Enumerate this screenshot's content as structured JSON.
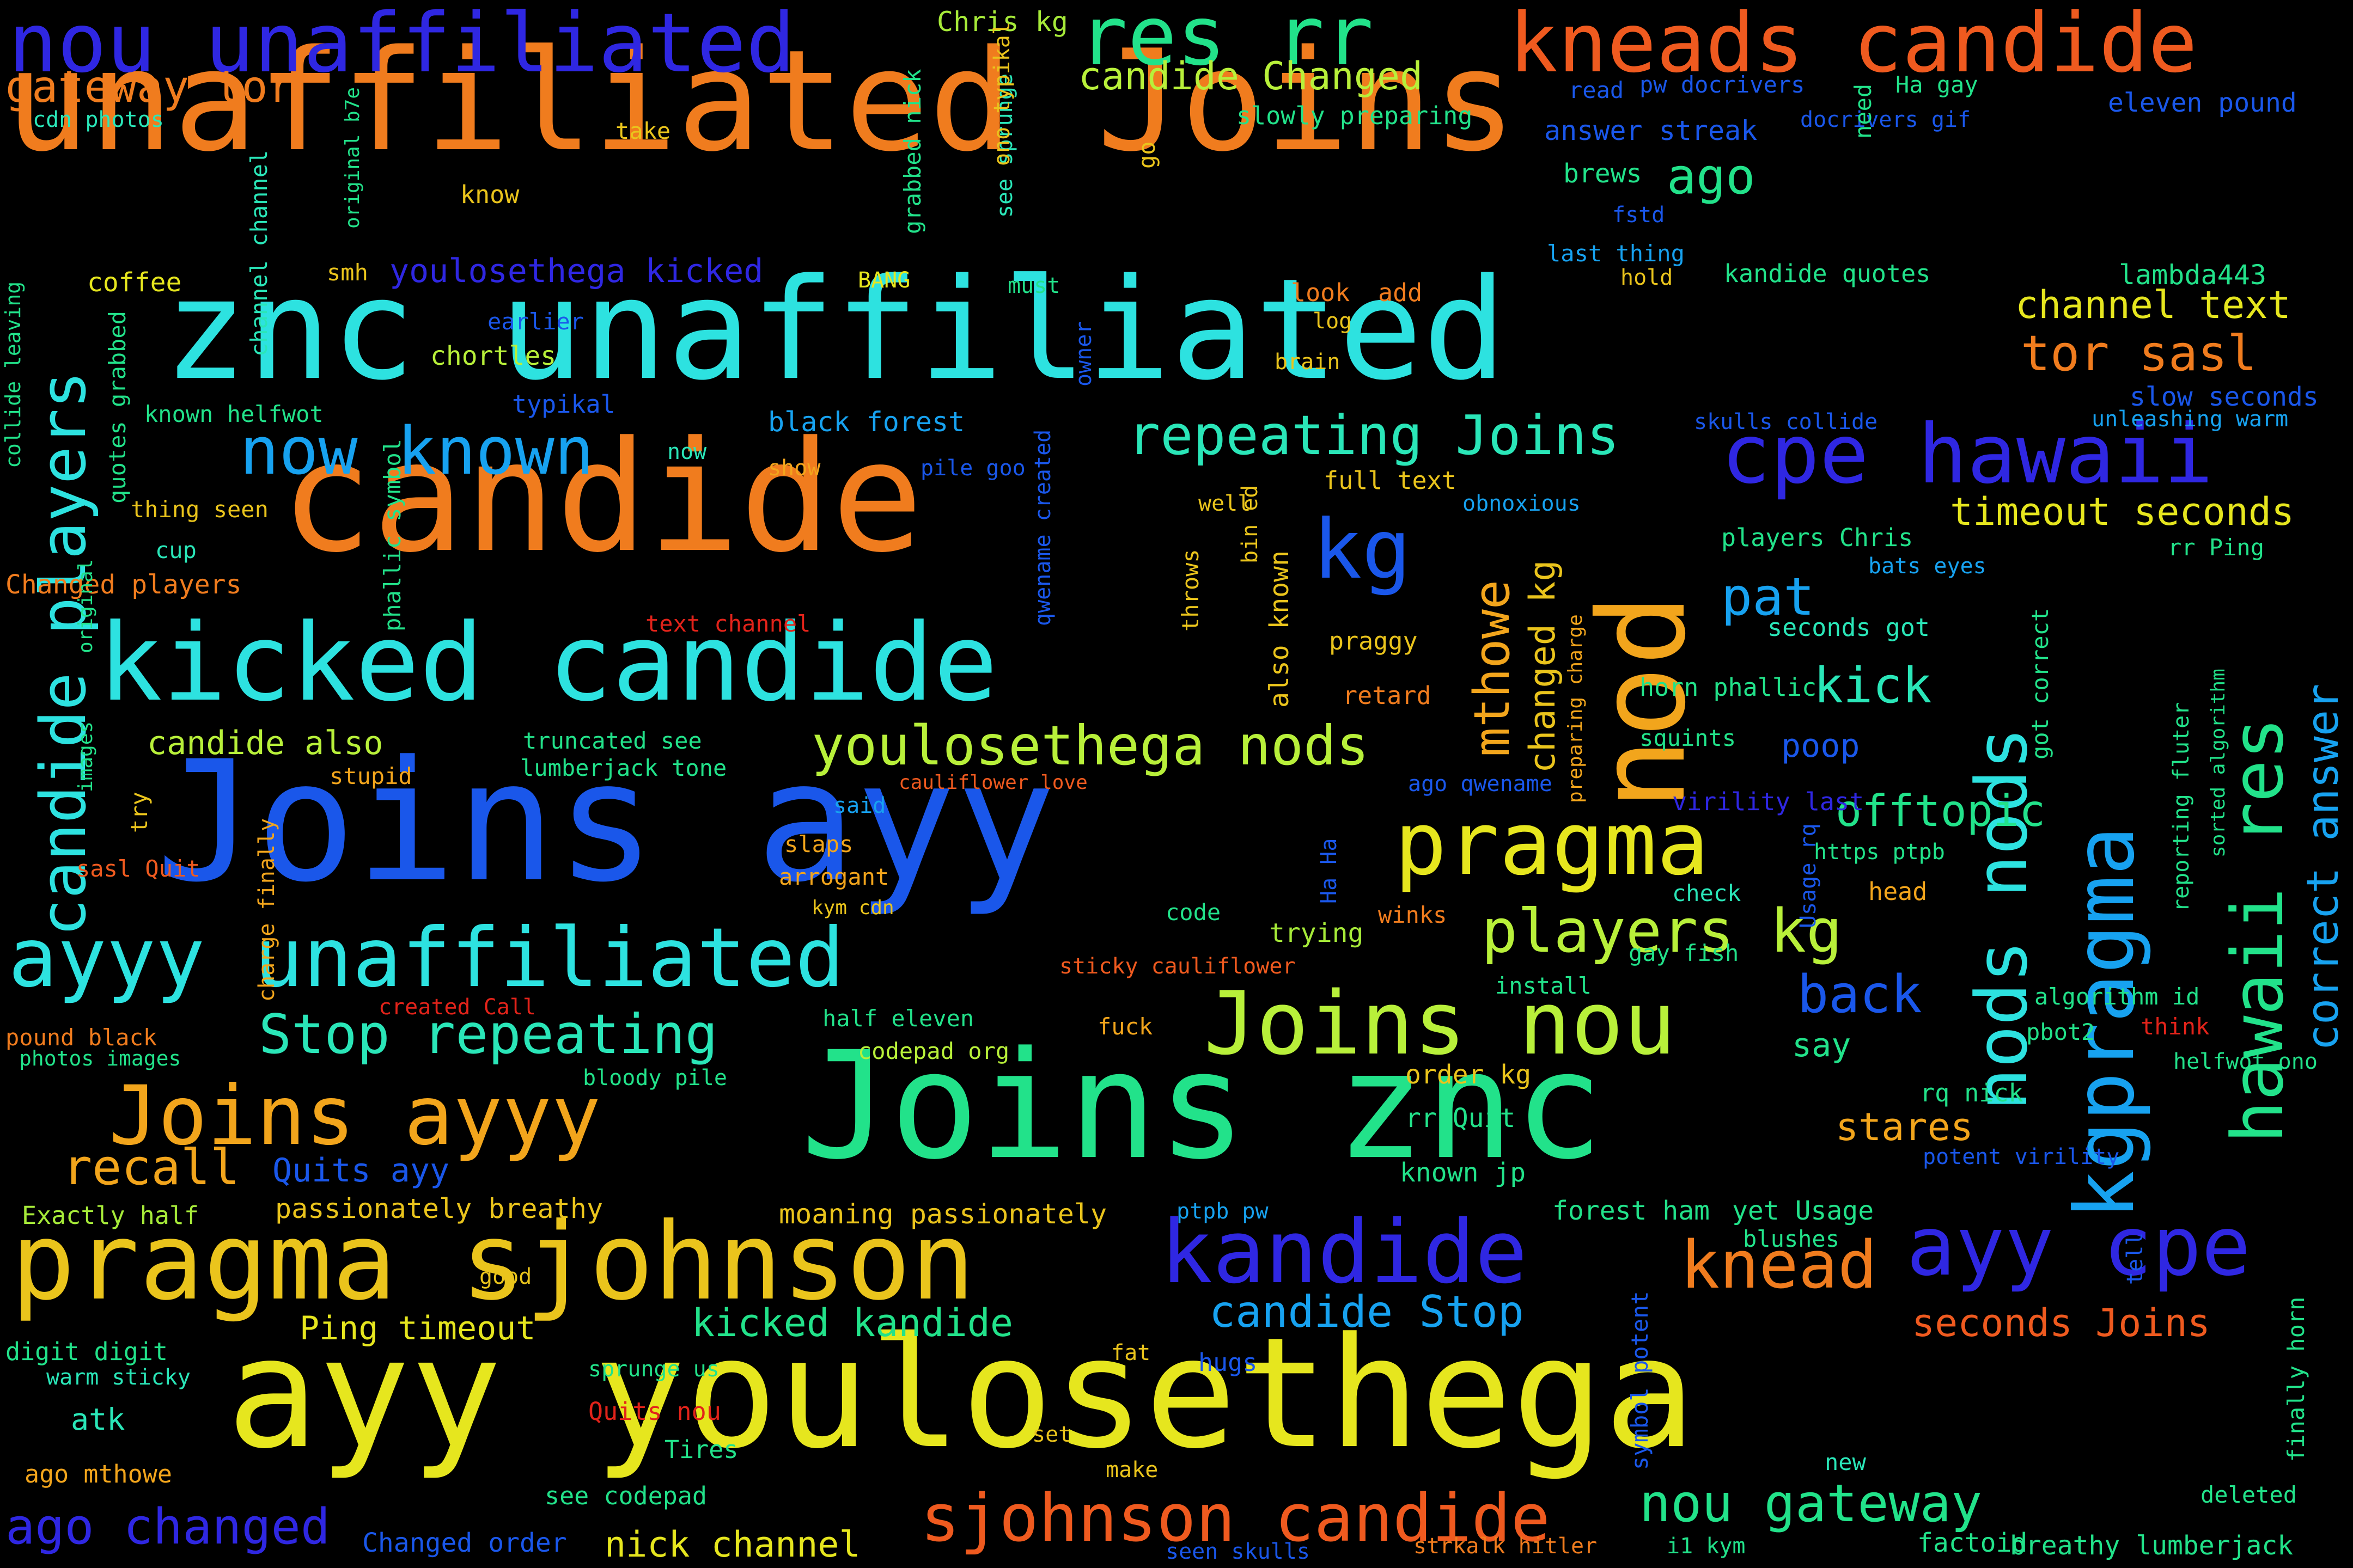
{
  "colors": {
    "background": "#000000",
    "red": "#e2231a",
    "orange_red": "#ef5a1f",
    "orange": "#f07c1e",
    "amber": "#f2a51c",
    "gold": "#eac41c",
    "yellow": "#e6e61e",
    "lime": "#b8f03a",
    "green_yellow": "#a6ea39",
    "green": "#22e28a",
    "mint": "#2ae6b8",
    "cyan": "#2de2e0",
    "sky": "#17a2f0",
    "blue": "#1a57ea",
    "indigo": "#2f27e2"
  },
  "words": [
    {
      "text": "unaffiliated Joins",
      "c": "orange"
    },
    {
      "text": "znc unaffiliated",
      "c": "cyan"
    },
    {
      "text": "candide",
      "c": "orange"
    },
    {
      "text": "nod",
      "c": "amber"
    },
    {
      "text": "Joins ayy",
      "c": "blue"
    },
    {
      "text": "Joins znc",
      "c": "green"
    },
    {
      "text": "ayy youlosethega",
      "c": "yellow"
    },
    {
      "text": "kicked candide",
      "c": "cyan"
    },
    {
      "text": "pragma sjohnson",
      "c": "gold"
    },
    {
      "text": "nou unaffiliated",
      "c": "indigo"
    },
    {
      "text": "res rr",
      "c": "green"
    },
    {
      "text": "kneads candide",
      "c": "orange_red"
    },
    {
      "text": "cpe hawaii",
      "c": "indigo"
    },
    {
      "text": "ayyy unaffiliated",
      "c": "cyan"
    },
    {
      "text": "pragma",
      "c": "yellow"
    },
    {
      "text": "Joins nou",
      "c": "lime"
    },
    {
      "text": "kandide",
      "c": "indigo"
    },
    {
      "text": "Joins ayyy",
      "c": "amber"
    },
    {
      "text": "sjohnson candide",
      "c": "orange_red"
    },
    {
      "text": "ayy cpe",
      "c": "indigo"
    },
    {
      "text": "kg",
      "c": "blue"
    },
    {
      "text": "now known",
      "c": "sky"
    },
    {
      "text": "repeating Joins",
      "c": "mint"
    },
    {
      "text": "youlosethega nods",
      "c": "lime"
    },
    {
      "text": "players kg",
      "c": "lime"
    },
    {
      "text": "Stop repeating",
      "c": "mint"
    },
    {
      "text": "knead",
      "c": "orange"
    },
    {
      "text": "nods nods",
      "c": "cyan"
    },
    {
      "text": "kgpragma",
      "c": "sky"
    },
    {
      "text": "hawaii res",
      "c": "green"
    },
    {
      "text": "correct answer",
      "c": "sky"
    },
    {
      "text": "timeout seconds",
      "c": "yellow"
    },
    {
      "text": "candide players",
      "c": "cyan"
    },
    {
      "text": "mthowe",
      "c": "amber"
    },
    {
      "text": "changed kg",
      "c": "gold"
    },
    {
      "text": "recall",
      "c": "amber"
    },
    {
      "text": "tor sasl",
      "c": "orange"
    },
    {
      "text": "channel text",
      "c": "yellow"
    },
    {
      "text": "offtopic",
      "c": "green"
    },
    {
      "text": "kick",
      "c": "mint"
    },
    {
      "text": "pat",
      "c": "sky"
    },
    {
      "text": "back",
      "c": "blue"
    },
    {
      "text": "ago",
      "c": "green"
    },
    {
      "text": "stares",
      "c": "amber"
    },
    {
      "text": "candide Stop",
      "c": "sky"
    },
    {
      "text": "kicked kandide",
      "c": "green"
    },
    {
      "text": "nou gateway",
      "c": "green"
    },
    {
      "text": "seconds Joins",
      "c": "orange_red"
    },
    {
      "text": "ago changed",
      "c": "indigo"
    },
    {
      "text": "nick channel",
      "c": "yellow"
    },
    {
      "text": "gateway tor",
      "c": "orange"
    },
    {
      "text": "candide Changed",
      "c": "lime"
    },
    {
      "text": "youlosethega kicked",
      "c": "indigo"
    },
    {
      "text": "Quits ayy",
      "c": "blue"
    },
    {
      "text": "Ping timeout",
      "c": "yellow"
    },
    {
      "text": "moaning passionately",
      "c": "gold"
    },
    {
      "text": "passionately breathy",
      "c": "gold"
    },
    {
      "text": "answer streak",
      "c": "blue"
    },
    {
      "text": "eleven pound",
      "c": "blue"
    },
    {
      "text": "Chris kg",
      "c": "green_yellow"
    },
    {
      "text": "cdn photos",
      "c": "mint"
    },
    {
      "text": "take",
      "c": "gold"
    },
    {
      "text": "know",
      "c": "gold"
    },
    {
      "text": "smh",
      "c": "gold"
    },
    {
      "text": "coffee",
      "c": "yellow"
    },
    {
      "text": "BANG",
      "c": "yellow"
    },
    {
      "text": "must",
      "c": "green"
    },
    {
      "text": "earlier",
      "c": "blue"
    },
    {
      "text": "chortles",
      "c": "lime"
    },
    {
      "text": "known helfwot",
      "c": "green"
    },
    {
      "text": "typikal",
      "c": "blue"
    },
    {
      "text": "black forest",
      "c": "sky"
    },
    {
      "text": "now",
      "c": "mint"
    },
    {
      "text": "show",
      "c": "amber"
    },
    {
      "text": "pile goo",
      "c": "blue"
    },
    {
      "text": "thing seen",
      "c": "gold"
    },
    {
      "text": "cup",
      "c": "mint"
    },
    {
      "text": "Changed players",
      "c": "orange"
    },
    {
      "text": "text channel",
      "c": "red"
    },
    {
      "text": "candide also",
      "c": "lime"
    },
    {
      "text": "truncated see",
      "c": "green"
    },
    {
      "text": "lumberjack tone",
      "c": "green"
    },
    {
      "text": "stupid",
      "c": "amber"
    },
    {
      "text": "said",
      "c": "sky"
    },
    {
      "text": "cauliflower love",
      "c": "orange_red"
    },
    {
      "text": "slaps",
      "c": "amber"
    },
    {
      "text": "arrogant",
      "c": "amber"
    },
    {
      "text": "kym cdn",
      "c": "gold"
    },
    {
      "text": "sasl Quit",
      "c": "orange_red"
    },
    {
      "text": "try",
      "c": "gold"
    },
    {
      "text": "code",
      "c": "green"
    },
    {
      "text": "trying",
      "c": "green_yellow"
    },
    {
      "text": "winks",
      "c": "orange"
    },
    {
      "text": "sticky cauliflower",
      "c": "orange_red"
    },
    {
      "text": "created Call",
      "c": "red"
    },
    {
      "text": "pound black",
      "c": "orange"
    },
    {
      "text": "photos images",
      "c": "green"
    },
    {
      "text": "half eleven",
      "c": "green"
    },
    {
      "text": "codepad org",
      "c": "lime"
    },
    {
      "text": "fuck",
      "c": "amber"
    },
    {
      "text": "bloody pile",
      "c": "green"
    },
    {
      "text": "Exactly half",
      "c": "green_yellow"
    },
    {
      "text": "good",
      "c": "gold"
    },
    {
      "text": "digit digit",
      "c": "green"
    },
    {
      "text": "warm sticky",
      "c": "mint"
    },
    {
      "text": "atk",
      "c": "mint"
    },
    {
      "text": "ago mthowe",
      "c": "amber"
    },
    {
      "text": "sprunge us",
      "c": "green"
    },
    {
      "text": "Quits nou",
      "c": "red"
    },
    {
      "text": "Tires",
      "c": "green"
    },
    {
      "text": "set",
      "c": "gold"
    },
    {
      "text": "make",
      "c": "gold"
    },
    {
      "text": "fat",
      "c": "gold"
    },
    {
      "text": "hugs",
      "c": "blue"
    },
    {
      "text": "see codepad",
      "c": "green"
    },
    {
      "text": "Changed order",
      "c": "blue"
    },
    {
      "text": "seen skulls",
      "c": "blue"
    },
    {
      "text": "strkalk hitler",
      "c": "orange"
    },
    {
      "text": "i1 kym",
      "c": "green"
    },
    {
      "text": "factoid",
      "c": "green"
    },
    {
      "text": "breathy lumberjack",
      "c": "green"
    },
    {
      "text": "deleted",
      "c": "green"
    },
    {
      "text": "new",
      "c": "mint"
    },
    {
      "text": "blushes",
      "c": "green"
    },
    {
      "text": "yet Usage",
      "c": "green"
    },
    {
      "text": "forest ham",
      "c": "green"
    },
    {
      "text": "ptpb pw",
      "c": "sky"
    },
    {
      "text": "known jp",
      "c": "green"
    },
    {
      "text": "rr Quit",
      "c": "green"
    },
    {
      "text": "order kg",
      "c": "gold"
    },
    {
      "text": "rq nick",
      "c": "green"
    },
    {
      "text": "potent virility",
      "c": "blue"
    },
    {
      "text": "helfwot ono",
      "c": "green"
    },
    {
      "text": "think",
      "c": "red"
    },
    {
      "text": "pbot2",
      "c": "green"
    },
    {
      "text": "algorithm id",
      "c": "green"
    },
    {
      "text": "say",
      "c": "green"
    },
    {
      "text": "install",
      "c": "green"
    },
    {
      "text": "gay fish",
      "c": "green"
    },
    {
      "text": "head",
      "c": "amber"
    },
    {
      "text": "check",
      "c": "mint"
    },
    {
      "text": "https ptpb",
      "c": "green"
    },
    {
      "text": "virility last",
      "c": "indigo"
    },
    {
      "text": "ago qwename",
      "c": "blue"
    },
    {
      "text": "squints",
      "c": "green"
    },
    {
      "text": "poop",
      "c": "blue"
    },
    {
      "text": "horn phallic",
      "c": "green"
    },
    {
      "text": "seconds got",
      "c": "mint"
    },
    {
      "text": "bats eyes",
      "c": "sky"
    },
    {
      "text": "players Chris",
      "c": "green"
    },
    {
      "text": "rr Ping",
      "c": "green"
    },
    {
      "text": "slow seconds",
      "c": "blue"
    },
    {
      "text": "unleashing warm",
      "c": "sky"
    },
    {
      "text": "skulls collide",
      "c": "blue"
    },
    {
      "text": "lambda443",
      "c": "green"
    },
    {
      "text": "kandide quotes",
      "c": "green"
    },
    {
      "text": "hold",
      "c": "gold"
    },
    {
      "text": "last thing",
      "c": "sky"
    },
    {
      "text": "fstd",
      "c": "blue"
    },
    {
      "text": "brews",
      "c": "green"
    },
    {
      "text": "read",
      "c": "blue"
    },
    {
      "text": "pw docrivers",
      "c": "blue"
    },
    {
      "text": "Ha gay",
      "c": "green"
    },
    {
      "text": "docrivers gif",
      "c": "blue"
    },
    {
      "text": "slowly preparing",
      "c": "green"
    },
    {
      "text": "look",
      "c": "orange"
    },
    {
      "text": "add",
      "c": "orange"
    },
    {
      "text": "log",
      "c": "gold"
    },
    {
      "text": "brain",
      "c": "gold"
    },
    {
      "text": "full text",
      "c": "gold"
    },
    {
      "text": "obnoxious",
      "c": "sky"
    },
    {
      "text": "well",
      "c": "gold"
    },
    {
      "text": "praggy",
      "c": "gold"
    },
    {
      "text": "retard",
      "c": "orange"
    },
    {
      "text": "Ha Ha",
      "c": "blue"
    },
    {
      "text": "collide leaving",
      "c": "green"
    },
    {
      "text": "quotes grabbed",
      "c": "green"
    },
    {
      "text": "channel channel",
      "c": "mint"
    },
    {
      "text": "original b7e",
      "c": "green"
    },
    {
      "text": "phallic symbol",
      "c": "green"
    },
    {
      "text": "original",
      "c": "green"
    },
    {
      "text": "images",
      "c": "green"
    },
    {
      "text": "charge finally",
      "c": "amber"
    },
    {
      "text": "grabbed nick",
      "c": "green"
    },
    {
      "text": "see sprunge",
      "c": "mint"
    },
    {
      "text": "ono typikal",
      "c": "gold"
    },
    {
      "text": "go",
      "c": "gold"
    },
    {
      "text": "owner",
      "c": "blue"
    },
    {
      "text": "qwename created",
      "c": "blue"
    },
    {
      "text": "throws",
      "c": "gold"
    },
    {
      "text": "bin ed",
      "c": "gold"
    },
    {
      "text": "also known",
      "c": "gold"
    },
    {
      "text": "preparing charge",
      "c": "amber"
    },
    {
      "text": "need",
      "c": "green"
    },
    {
      "text": "Usage rq",
      "c": "blue"
    },
    {
      "text": "got correct",
      "c": "green"
    },
    {
      "text": "reporting fluter",
      "c": "green"
    },
    {
      "text": "sorted algorithm",
      "c": "green"
    },
    {
      "text": "tell",
      "c": "blue"
    },
    {
      "text": "finally horn",
      "c": "green"
    },
    {
      "text": "symbol potent",
      "c": "blue"
    }
  ]
}
